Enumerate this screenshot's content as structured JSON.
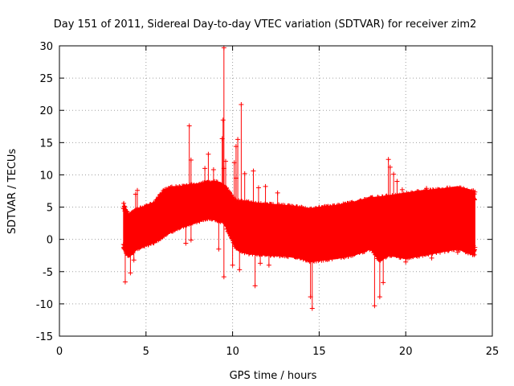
{
  "chart_data": {
    "type": "scatter",
    "title": "Day 151 of 2011, Sidereal Day-to-day VTEC variation (SDTVAR) for receiver zim2",
    "xlabel": "GPS time / hours",
    "ylabel": "SDTVAR / TECUs",
    "xlim": [
      0,
      25
    ],
    "ylim": [
      -15,
      30
    ],
    "xticks": [
      0,
      5,
      10,
      15,
      20,
      25
    ],
    "yticks": [
      -15,
      -10,
      -5,
      0,
      5,
      10,
      15,
      20,
      25,
      30
    ],
    "grid": true,
    "marker": "+",
    "color": "#ff0000",
    "series": [
      {
        "name": "SDTVAR",
        "envelope": {
          "x": [
            3.7,
            4.0,
            4.5,
            5.0,
            5.5,
            6.0,
            6.5,
            7.0,
            7.5,
            8.0,
            8.5,
            9.0,
            9.5,
            10.2,
            10.5,
            11.0,
            12.0,
            13.0,
            14.0,
            14.5,
            15.0,
            16.0,
            17.0,
            18.0,
            18.5,
            19.0,
            20.0,
            21.0,
            22.0,
            23.0,
            24.0
          ],
          "upper": [
            5.8,
            3.8,
            4.8,
            5.2,
            5.8,
            7.6,
            8.2,
            8.2,
            8.5,
            8.6,
            8.9,
            9.0,
            8.5,
            6.0,
            6.0,
            5.8,
            5.5,
            5.3,
            5.0,
            4.8,
            5.0,
            5.3,
            5.8,
            6.5,
            6.6,
            6.8,
            7.2,
            7.6,
            7.8,
            8.2,
            7.5
          ],
          "lower": [
            -1.5,
            -2.8,
            -1.5,
            -1.0,
            -0.5,
            0.4,
            1.2,
            1.8,
            2.2,
            2.7,
            3.2,
            3.0,
            2.5,
            -1.5,
            -2.0,
            -2.3,
            -2.5,
            -2.6,
            -3.0,
            -3.5,
            -3.3,
            -3.0,
            -2.5,
            -1.5,
            -3.5,
            -2.5,
            -3.0,
            -2.5,
            -2.0,
            -1.5,
            -2.5
          ]
        },
        "outliers": [
          {
            "x": 3.8,
            "y": -6.6
          },
          {
            "x": 4.1,
            "y": -5.2
          },
          {
            "x": 4.3,
            "y": -3.2
          },
          {
            "x": 4.4,
            "y": 7.0
          },
          {
            "x": 4.5,
            "y": 7.6
          },
          {
            "x": 7.5,
            "y": 17.6
          },
          {
            "x": 7.6,
            "y": 12.3
          },
          {
            "x": 7.3,
            "y": -0.6
          },
          {
            "x": 7.6,
            "y": -0.1
          },
          {
            "x": 8.4,
            "y": 11.0
          },
          {
            "x": 8.6,
            "y": 13.2
          },
          {
            "x": 8.9,
            "y": 10.8
          },
          {
            "x": 9.2,
            "y": -1.5
          },
          {
            "x": 9.5,
            "y": 29.7
          },
          {
            "x": 9.45,
            "y": 18.5
          },
          {
            "x": 9.4,
            "y": 15.6
          },
          {
            "x": 9.5,
            "y": 11.0
          },
          {
            "x": 9.6,
            "y": 12.1
          },
          {
            "x": 9.5,
            "y": -5.8
          },
          {
            "x": 10.1,
            "y": 11.9
          },
          {
            "x": 10.2,
            "y": 9.5
          },
          {
            "x": 10.2,
            "y": 14.4
          },
          {
            "x": 10.3,
            "y": 15.5
          },
          {
            "x": 10.5,
            "y": 20.9
          },
          {
            "x": 10.4,
            "y": -4.7
          },
          {
            "x": 10.0,
            "y": -4.0
          },
          {
            "x": 10.7,
            "y": 10.2
          },
          {
            "x": 11.2,
            "y": 10.6
          },
          {
            "x": 11.5,
            "y": 8.0
          },
          {
            "x": 11.9,
            "y": 8.2
          },
          {
            "x": 11.3,
            "y": -7.2
          },
          {
            "x": 11.6,
            "y": -3.7
          },
          {
            "x": 12.1,
            "y": -4.0
          },
          {
            "x": 12.6,
            "y": 7.2
          },
          {
            "x": 14.6,
            "y": -10.7
          },
          {
            "x": 14.5,
            "y": -8.9
          },
          {
            "x": 18.2,
            "y": -10.3
          },
          {
            "x": 18.5,
            "y": -8.9
          },
          {
            "x": 18.7,
            "y": -6.7
          },
          {
            "x": 19.0,
            "y": 12.4
          },
          {
            "x": 19.1,
            "y": 11.2
          },
          {
            "x": 19.3,
            "y": 10.1
          },
          {
            "x": 19.5,
            "y": 9.0
          },
          {
            "x": 19.8,
            "y": 7.7
          },
          {
            "x": 20.0,
            "y": -3.5
          },
          {
            "x": 21.5,
            "y": -2.9
          },
          {
            "x": 21.2,
            "y": 7.9
          },
          {
            "x": 23.0,
            "y": -2.0
          }
        ]
      }
    ]
  }
}
